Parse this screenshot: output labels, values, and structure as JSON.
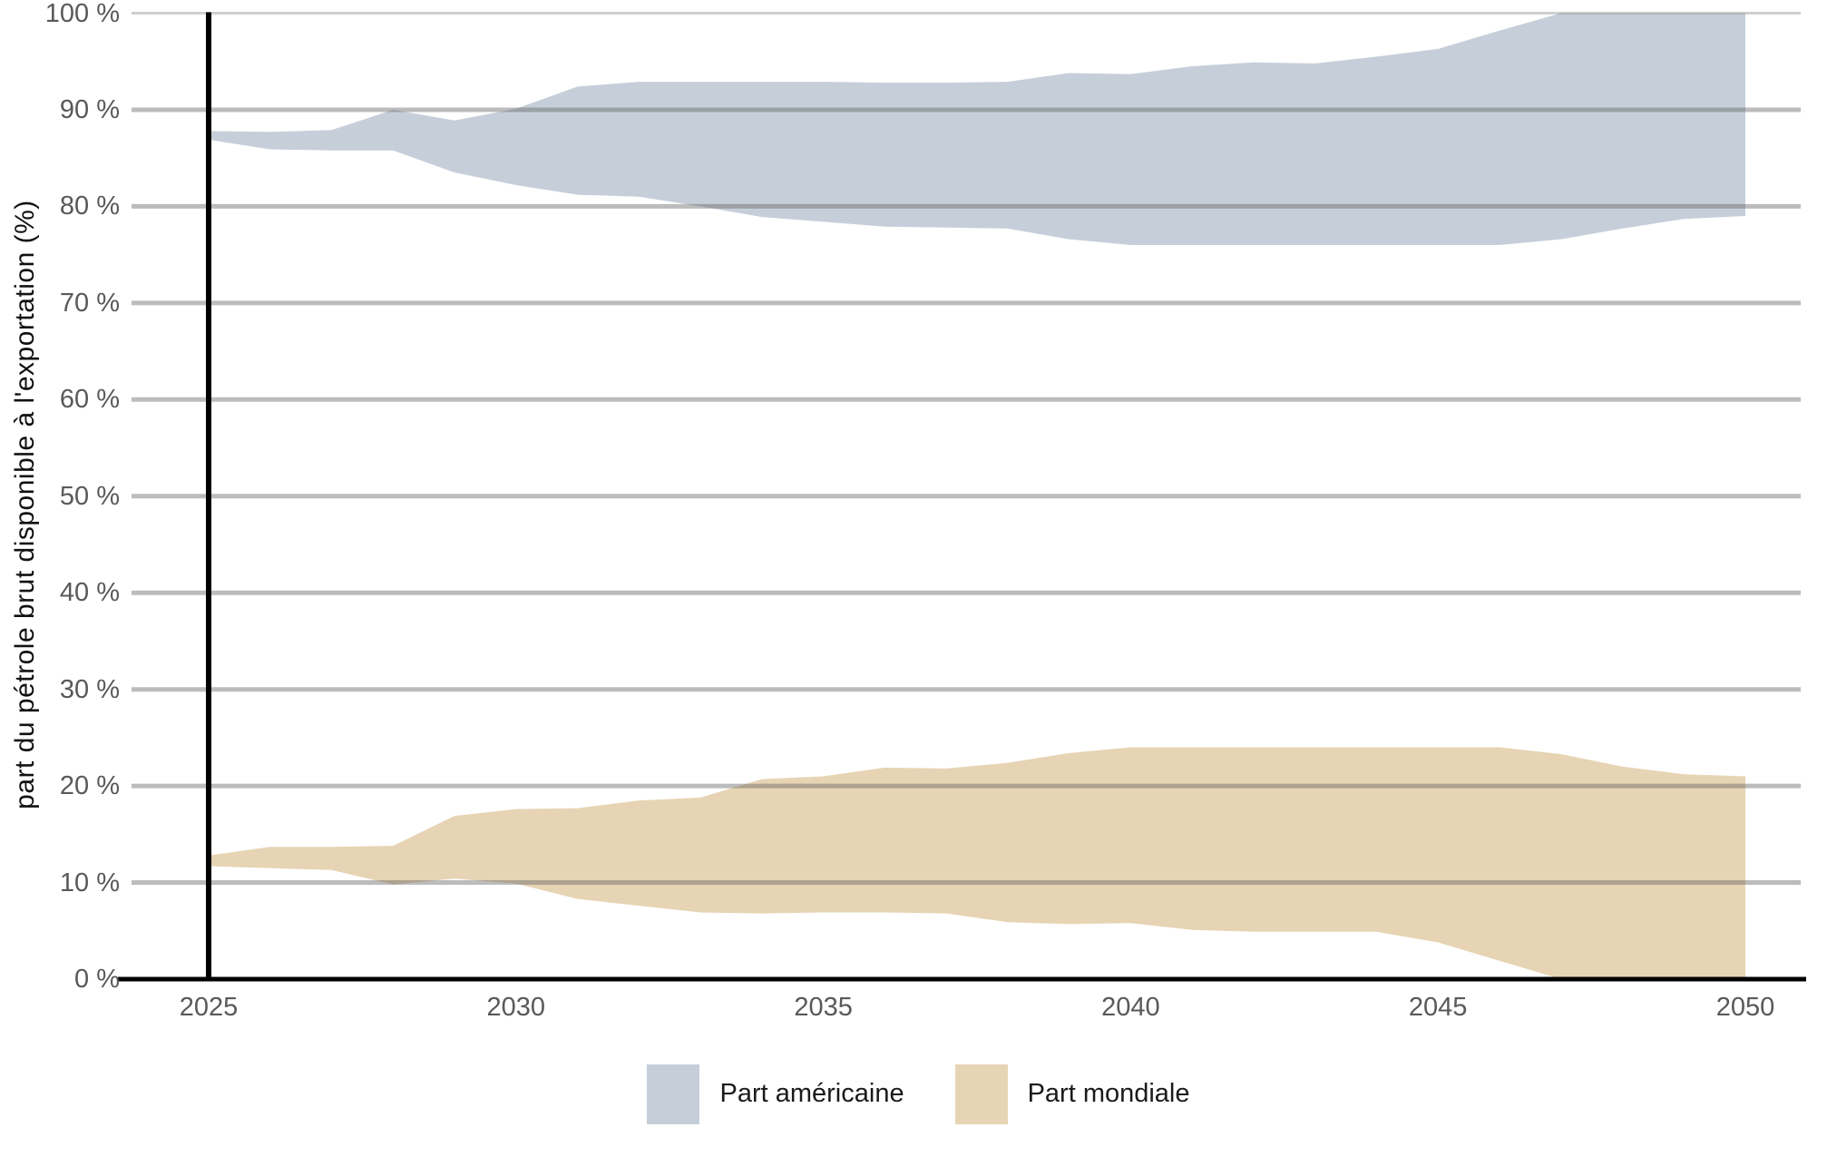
{
  "chart_data": {
    "type": "area",
    "title": "",
    "xlabel": "",
    "ylabel": "part du pétrole brut disponible à l'exportation (%)",
    "ylim": [
      0,
      100
    ],
    "xlim": [
      2025,
      2050
    ],
    "grid": true,
    "legend_position": "bottom",
    "annotations": [
      "vertical black reference line at x = 2025"
    ],
    "x_tick_values": [
      2025,
      2030,
      2035,
      2040,
      2045,
      2050
    ],
    "x_tick_labels": [
      "2025",
      "2030",
      "2035",
      "2040",
      "2045",
      "2050"
    ],
    "y_tick_values": [
      0,
      10,
      20,
      30,
      40,
      50,
      60,
      70,
      80,
      90,
      100
    ],
    "y_tick_labels": [
      "0 %",
      "10 %",
      "20 %",
      "30 %",
      "40 %",
      "50 %",
      "60 %",
      "70 %",
      "80 %",
      "90 %",
      "100 %"
    ],
    "x": [
      2025,
      2026,
      2027,
      2028,
      2029,
      2030,
      2031,
      2032,
      2033,
      2034,
      2035,
      2036,
      2037,
      2038,
      2039,
      2040,
      2041,
      2042,
      2043,
      2044,
      2045,
      2046,
      2047,
      2048,
      2049,
      2050
    ],
    "series": [
      {
        "name": "Part américaine",
        "type": "band",
        "color": "#c6cfd9",
        "lower": [
          86.9,
          85.9,
          85.8,
          85.8,
          83.5,
          82.2,
          81.2,
          81.0,
          80.0,
          78.9,
          78.4,
          77.9,
          77.8,
          77.7,
          76.6,
          76.0,
          76.0,
          76.0,
          76.0,
          76.0,
          76.0,
          76.0,
          76.6,
          77.7,
          78.7,
          79.0
        ],
        "upper": [
          87.8,
          87.7,
          87.9,
          90.0,
          88.9,
          90.1,
          92.4,
          92.9,
          92.9,
          92.9,
          92.9,
          92.8,
          92.8,
          92.9,
          93.8,
          93.7,
          94.5,
          94.9,
          94.8,
          95.5,
          96.3,
          98.2,
          100,
          100,
          100,
          100
        ]
      },
      {
        "name": "Part mondiale",
        "type": "band",
        "color": "#e7d4b4",
        "lower": [
          11.7,
          11.5,
          11.3,
          9.8,
          10.4,
          9.9,
          8.3,
          7.6,
          6.9,
          6.8,
          6.9,
          6.9,
          6.8,
          5.9,
          5.7,
          5.8,
          5.1,
          4.9,
          4.9,
          4.9,
          3.8,
          1.9,
          0,
          0,
          0,
          0
        ],
        "upper": [
          12.8,
          13.7,
          13.7,
          13.8,
          16.9,
          17.6,
          17.7,
          18.5,
          18.8,
          20.7,
          21.0,
          21.9,
          21.8,
          22.4,
          23.4,
          24.0,
          24.0,
          24.0,
          24.0,
          24.0,
          24.0,
          24.0,
          23.3,
          22.0,
          21.2,
          21.0
        ]
      }
    ],
    "colors": {
      "gridline": "#bcbcbc",
      "gridline_top": "#cfcfcf",
      "axis": "#000000",
      "event_line": "#000000",
      "tick_label": "#595959"
    }
  },
  "legend": {
    "items": [
      {
        "label": "Part américaine",
        "color": "#c6cfd9"
      },
      {
        "label": "Part mondiale",
        "color": "#e7d4b4"
      }
    ]
  }
}
